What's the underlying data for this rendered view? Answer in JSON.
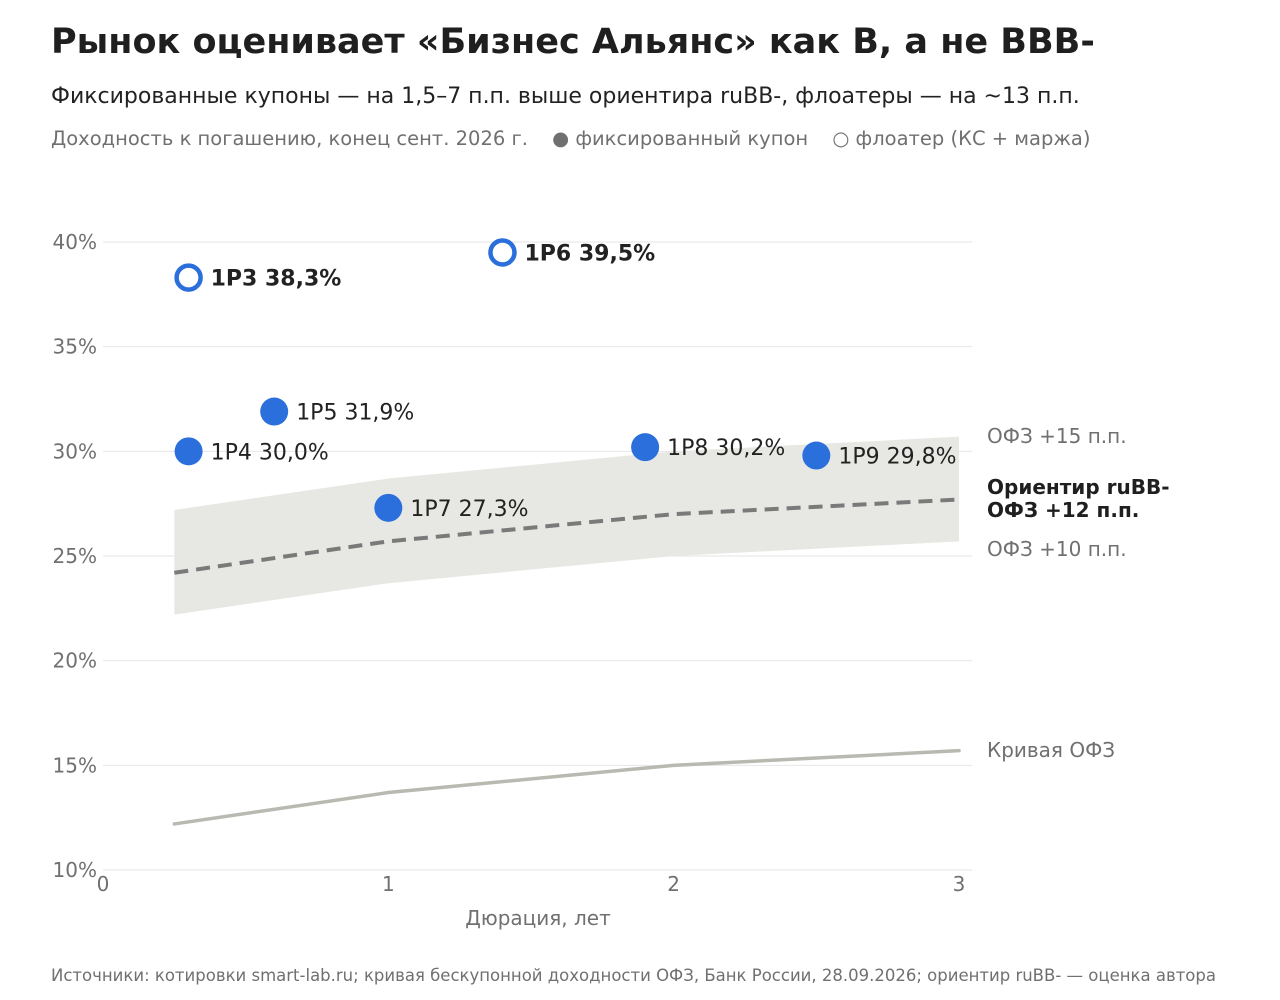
{
  "title": "Рынок оценивает «Бизнес Альянс» как B, а не BBB-",
  "subtitle": "Фиксированные купоны — на 1,5–7 п.п. выше ориентира ruBB-, флоатеры — на ~13 п.п.",
  "caption": {
    "text": "Доходность к погашению, конец сент. 2026 г.",
    "legend_fixed": "● фиксированный купон",
    "legend_floater": "○ флоатер (КС + маржа)"
  },
  "footer": "Источники: котировки smart-lab.ru; кривая бескупонной доходности ОФЗ, Банк России, 28.09.2026; ориентир ruBB- — оценка автора",
  "colors": {
    "point": "#2a6fdb",
    "band": "#e7e8e3",
    "benchmark": "#7a7a7a",
    "ofz": "#b8b9b0",
    "grid": "#e6e6e6"
  },
  "chart_data": {
    "type": "scatter",
    "xlabel": "Дюрация, лет",
    "xlim": [
      0,
      3
    ],
    "ylim": [
      10,
      40
    ],
    "x_ticks": [
      {
        "v": 0,
        "label": "0"
      },
      {
        "v": 1,
        "label": "1"
      },
      {
        "v": 2,
        "label": "2"
      },
      {
        "v": 3,
        "label": "3"
      }
    ],
    "y_ticks": [
      {
        "v": 10,
        "label": "10%"
      },
      {
        "v": 15,
        "label": "15%"
      },
      {
        "v": 20,
        "label": "20%"
      },
      {
        "v": 25,
        "label": "25%"
      },
      {
        "v": 30,
        "label": "30%"
      },
      {
        "v": 35,
        "label": "35%"
      },
      {
        "v": 40,
        "label": "40%"
      }
    ],
    "grid": true,
    "points": [
      {
        "name": "1Р3",
        "x": 0.3,
        "y": 38.3,
        "label": "1Р3  38,3%",
        "kind": "floater"
      },
      {
        "name": "1Р6",
        "x": 1.4,
        "y": 39.5,
        "label": "1Р6  39,5%",
        "kind": "floater"
      },
      {
        "name": "1Р5",
        "x": 0.6,
        "y": 31.9,
        "label": "1Р5  31,9%",
        "kind": "fixed"
      },
      {
        "name": "1Р4",
        "x": 0.3,
        "y": 30.0,
        "label": "1Р4  30,0%",
        "kind": "fixed"
      },
      {
        "name": "1Р7",
        "x": 1.0,
        "y": 27.3,
        "label": "1Р7  27,3%",
        "kind": "fixed"
      },
      {
        "name": "1Р8",
        "x": 1.9,
        "y": 30.2,
        "label": "1Р8  30,2%",
        "kind": "fixed"
      },
      {
        "name": "1Р9",
        "x": 2.5,
        "y": 29.8,
        "label": "1Р9  29,8%",
        "kind": "fixed"
      }
    ],
    "ofz_curve": {
      "x": [
        0.25,
        1,
        2,
        3
      ],
      "y": [
        12.2,
        13.7,
        15.0,
        15.7
      ],
      "label": "Кривая ОФЗ"
    },
    "benchmark": {
      "x": [
        0.25,
        1,
        2,
        3
      ],
      "y": [
        24.2,
        25.7,
        27.0,
        27.7
      ],
      "label_line1": "Ориентир ruBB-",
      "label_line2": "ОФЗ +12 п.п."
    },
    "band": {
      "x": [
        0.25,
        1,
        2,
        3
      ],
      "lower": [
        22.2,
        23.7,
        25.0,
        25.7
      ],
      "upper": [
        27.2,
        28.7,
        30.0,
        30.7
      ],
      "upper_label": "ОФЗ +15 п.п.",
      "lower_label": "ОФЗ +10 п.п."
    }
  }
}
